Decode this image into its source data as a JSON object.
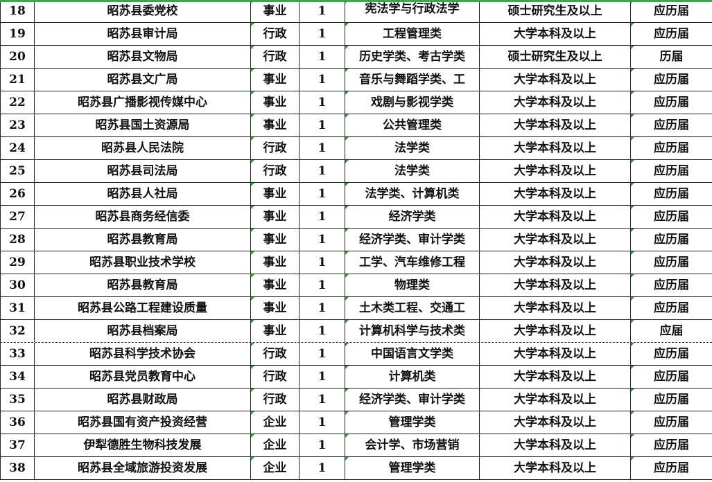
{
  "colors": {
    "top_border": "#3ea64a",
    "error_marker": "#2d9a3a",
    "grid": "#222222"
  },
  "rows": [
    {
      "no": "18",
      "unit": "昭苏县委党校",
      "type": "事业",
      "count": "1",
      "major": "宪法学与行政法学",
      "edu": "硕士研究生及以上",
      "grad": "应历届"
    },
    {
      "no": "19",
      "unit": "昭苏县审计局",
      "type": "行政",
      "count": "1",
      "major": "工程管理类",
      "edu": "大学本科及以上",
      "grad": "应历届"
    },
    {
      "no": "20",
      "unit": "昭苏县文物局",
      "type": "行政",
      "count": "1",
      "major": "历史学类、考古学类",
      "edu": "硕士研究生及以上",
      "grad": "历届"
    },
    {
      "no": "21",
      "unit": "昭苏县文广局",
      "type": "事业",
      "count": "1",
      "major": "音乐与舞蹈学类、工",
      "edu": "大学本科及以上",
      "grad": "应历届"
    },
    {
      "no": "22",
      "unit": "昭苏县广播影视传媒中心",
      "type": "事业",
      "count": "1",
      "major": "戏剧与影视学类",
      "edu": "大学本科及以上",
      "grad": "应历届"
    },
    {
      "no": "23",
      "unit": "昭苏县国土资源局",
      "type": "事业",
      "count": "1",
      "major": "公共管理类",
      "edu": "大学本科及以上",
      "grad": "应历届"
    },
    {
      "no": "24",
      "unit": "昭苏县人民法院",
      "type": "行政",
      "count": "1",
      "major": "法学类",
      "edu": "大学本科及以上",
      "grad": "应历届"
    },
    {
      "no": "25",
      "unit": "昭苏县司法局",
      "type": "行政",
      "count": "1",
      "major": "法学类",
      "edu": "大学本科及以上",
      "grad": "应历届"
    },
    {
      "no": "26",
      "unit": "昭苏县人社局",
      "type": "事业",
      "count": "1",
      "major": "法学类、计算机类",
      "edu": "大学本科及以上",
      "grad": "应历届"
    },
    {
      "no": "27",
      "unit": "昭苏县商务经信委",
      "type": "事业",
      "count": "1",
      "major": "经济学类",
      "edu": "大学本科及以上",
      "grad": "应历届"
    },
    {
      "no": "28",
      "unit": "昭苏县教育局",
      "type": "事业",
      "count": "1",
      "major": "经济学类、审计学类",
      "edu": "大学本科及以上",
      "grad": "应历届"
    },
    {
      "no": "29",
      "unit": "昭苏县职业技术学校",
      "type": "事业",
      "count": "1",
      "major": "工学、汽车维修工程",
      "edu": "大学本科及以上",
      "grad": "应历届"
    },
    {
      "no": "30",
      "unit": "昭苏县教育局",
      "type": "事业",
      "count": "1",
      "major": "物理类",
      "edu": "大学本科及以上",
      "grad": "应历届"
    },
    {
      "no": "31",
      "unit": "昭苏县公路工程建设质量",
      "type": "事业",
      "count": "1",
      "major": "土木类工程、交通工",
      "edu": "大学本科及以上",
      "grad": "应历届"
    },
    {
      "no": "32",
      "unit": "昭苏县档案局",
      "type": "事业",
      "count": "1",
      "major": "计算机科学与技术类",
      "edu": "大学本科及以上",
      "grad": "应届"
    },
    {
      "no": "33",
      "unit": "昭苏县科学技术协会",
      "type": "行政",
      "count": "1",
      "major": "中国语言文学类",
      "edu": "大学本科及以上",
      "grad": "应历届"
    },
    {
      "no": "34",
      "unit": "昭苏县党员教育中心",
      "type": "行政",
      "count": "1",
      "major": "计算机类",
      "edu": "大学本科及以上",
      "grad": "应历届"
    },
    {
      "no": "35",
      "unit": "昭苏县财政局",
      "type": "行政",
      "count": "1",
      "major": "经济学类、审计学类",
      "edu": "大学本科及以上",
      "grad": "应历届"
    },
    {
      "no": "36",
      "unit": "昭苏县国有资产投资经营",
      "type": "企业",
      "count": "1",
      "major": "管理学类",
      "edu": "大学本科及以上",
      "grad": "应历届"
    },
    {
      "no": "37",
      "unit": "伊犁德胜生物科技发展",
      "type": "企业",
      "count": "1",
      "major": "会计学、市场营销",
      "edu": "大学本科及以上",
      "grad": "应历届"
    },
    {
      "no": "38",
      "unit": "昭苏县全域旅游投资发展",
      "type": "企业",
      "count": "1",
      "major": "管理学类",
      "edu": "大学本科及以上",
      "grad": "应历届"
    }
  ]
}
